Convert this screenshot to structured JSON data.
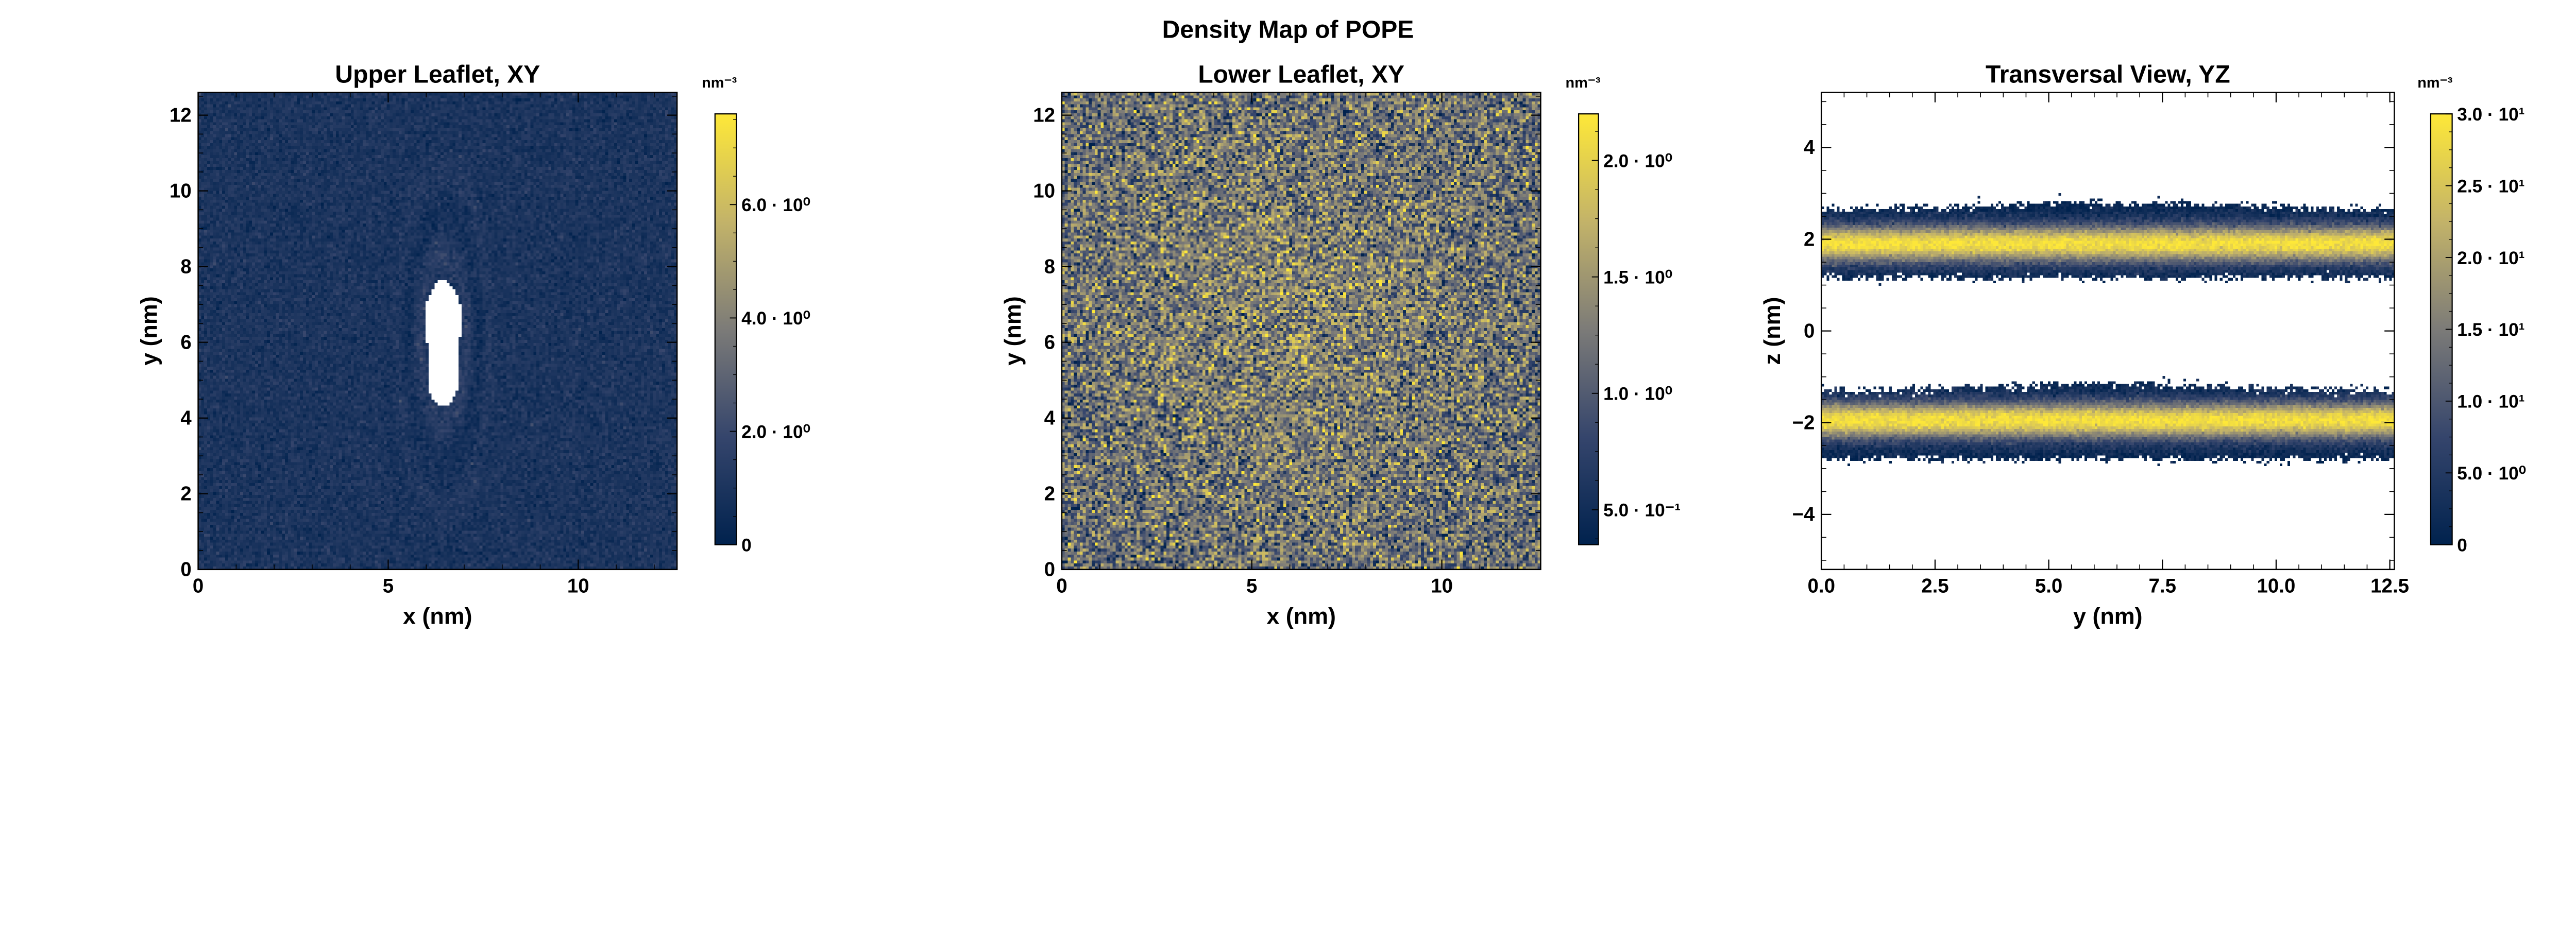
{
  "suptitle": "Density Map of POPE",
  "colors": {
    "cmap": [
      "#00224e",
      "#35456c",
      "#7c7b78",
      "#c3b369",
      "#fee838"
    ],
    "empty": "#ffffff"
  },
  "chart_data": [
    {
      "type": "heatmap",
      "title": "Upper Leaflet, XY",
      "xlabel": "x (nm)",
      "ylabel": "y (nm)",
      "xlim": [
        0,
        12.6
      ],
      "ylim": [
        0,
        12.6
      ],
      "xticks": [
        0,
        5,
        10
      ],
      "xtick_labels": [
        "0",
        "5",
        "10"
      ],
      "yticks": [
        0,
        2,
        4,
        6,
        8,
        10,
        12
      ],
      "ytick_labels": [
        "0",
        "2",
        "4",
        "6",
        "8",
        "10",
        "12"
      ],
      "colorbar": {
        "unit": "nm⁻³",
        "range": [
          0,
          7.6
        ],
        "ticks": [
          0,
          2,
          4,
          6
        ],
        "tick_labels": [
          "0",
          "2.0 · 10⁰",
          "4.0 · 10⁰",
          "6.0 · 10⁰"
        ]
      },
      "description_values": {
        "mean_density": 1.0,
        "empty_region_center": [
          6.5,
          6.0
        ]
      }
    },
    {
      "type": "heatmap",
      "title": "Lower Leaflet, XY",
      "xlabel": "x (nm)",
      "ylabel": "y (nm)",
      "xlim": [
        0,
        12.6
      ],
      "ylim": [
        0,
        12.6
      ],
      "xticks": [
        0,
        5,
        10
      ],
      "xtick_labels": [
        "0",
        "5",
        "10"
      ],
      "yticks": [
        0,
        2,
        4,
        6,
        8,
        10,
        12
      ],
      "ytick_labels": [
        "0",
        "2",
        "4",
        "6",
        "8",
        "10",
        "12"
      ],
      "colorbar": {
        "unit": "nm⁻³",
        "range": [
          0.35,
          2.2
        ],
        "ticks": [
          0.5,
          1.0,
          1.5,
          2.0
        ],
        "tick_labels": [
          "5.0 · 10⁻¹",
          "1.0 · 10⁰",
          "1.5 · 10⁰",
          "2.0 · 10⁰"
        ]
      },
      "description_values": {
        "mean_density": 1.2
      }
    },
    {
      "type": "heatmap",
      "title": "Transversal View, YZ",
      "xlabel": "y (nm)",
      "ylabel": "z (nm)",
      "xlim": [
        0,
        12.6
      ],
      "ylim": [
        -5.2,
        5.2
      ],
      "xticks": [
        0,
        2.5,
        5,
        7.5,
        10,
        12.5
      ],
      "xtick_labels": [
        "0.0",
        "2.5",
        "5.0",
        "7.5",
        "10.0",
        "12.5"
      ],
      "yticks": [
        -4,
        -2,
        0,
        2,
        4
      ],
      "ytick_labels": [
        "−4",
        "−2",
        "0",
        "2",
        "4"
      ],
      "colorbar": {
        "unit": "nm⁻³",
        "range": [
          0,
          30
        ],
        "ticks": [
          0,
          5,
          10,
          15,
          20,
          25,
          30
        ],
        "tick_labels": [
          "0",
          "5.0 · 10⁰",
          "1.0 · 10¹",
          "1.5 · 10¹",
          "2.0 · 10¹",
          "2.5 · 10¹",
          "3.0 · 10¹"
        ]
      },
      "description_values": {
        "band_centers_z": [
          1.9,
          -1.95
        ],
        "peak_density": 30
      }
    }
  ]
}
